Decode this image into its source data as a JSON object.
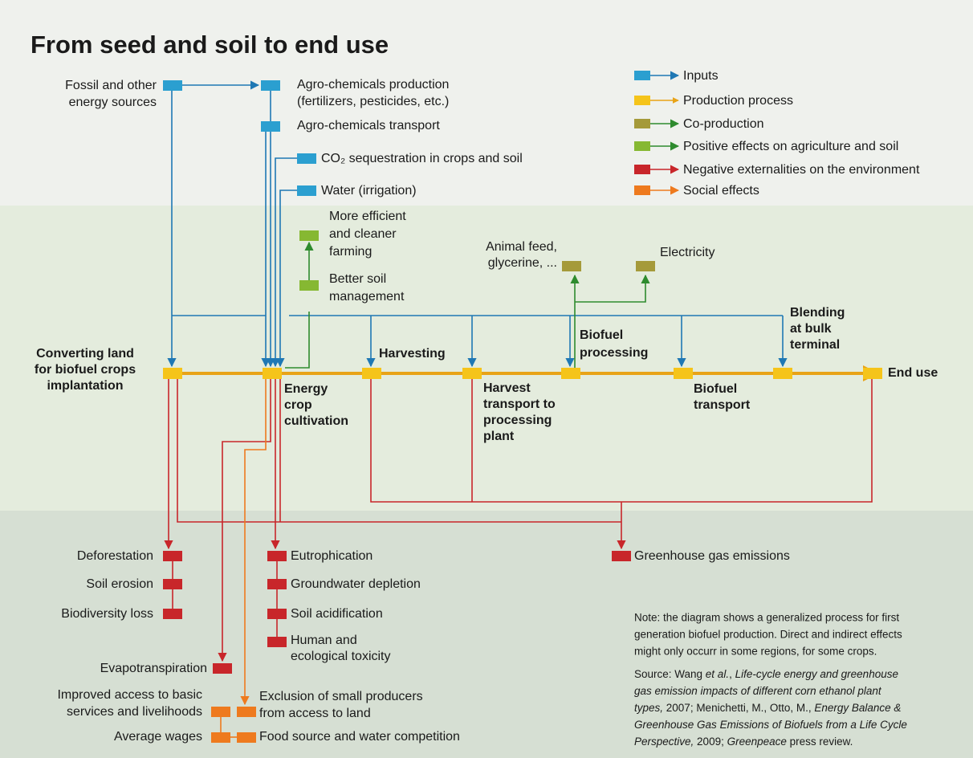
{
  "title": "From seed and soil to end use",
  "legend": [
    "Inputs",
    "Production process",
    "Co-production",
    "Positive effects on agriculture and soil",
    "Negative externalities on the environment",
    "Social effects"
  ],
  "inputs": {
    "fossil": [
      "Fossil and other",
      "energy sources"
    ],
    "agro_production": [
      "Agro-chemicals production",
      "(fertilizers, pesticides, etc.)"
    ],
    "agro_transport": [
      "Agro-chemicals transport"
    ],
    "co2": [
      "CO₂ sequestration in crops and soil"
    ],
    "water": [
      "Water (irrigation)"
    ]
  },
  "process": {
    "converting": [
      "Converting land",
      "for biofuel crops",
      "implantation"
    ],
    "cultivation": [
      "Energy",
      "crop",
      "cultivation"
    ],
    "harvesting": [
      "Harvesting"
    ],
    "harvest_transport": [
      "Harvest",
      "transport to",
      "processing",
      "plant"
    ],
    "processing": [
      "Biofuel",
      "processing"
    ],
    "biofuel_transport": [
      "Biofuel",
      "transport"
    ],
    "blending": [
      "Blending",
      "at bulk",
      "terminal"
    ],
    "end_use": [
      "End use"
    ]
  },
  "positive": {
    "efficient": [
      "More efficient",
      "and cleaner",
      "farming"
    ],
    "soil": [
      "Better soil",
      "management"
    ]
  },
  "coproduction": {
    "feed": [
      "Animal feed,",
      "glycerine, ..."
    ],
    "electricity": [
      "Electricity"
    ]
  },
  "negative": {
    "land": [
      "Deforestation",
      "Soil erosion",
      "Biodiversity loss"
    ],
    "cultivation": [
      "Eutrophication",
      "Groundwater depletion",
      "Soil acidification",
      "Human and",
      "ecological toxicity"
    ],
    "evapotranspiration": "Evapotranspiration",
    "ghg": "Greenhouse gas emissions"
  },
  "social": {
    "access": [
      "Improved access to basic",
      "services and livelihoods"
    ],
    "wages": "Average wages",
    "exclusion": [
      "Exclusion of small producers",
      "from access to land"
    ],
    "food": "Food source and water competition"
  },
  "note": [
    "Note: the diagram shows a generalized process for first",
    "generation biofuel production. Direct and indirect effects",
    "might only occurr in some regions, for some crops."
  ],
  "source": [
    [
      "Source: Wang ",
      "et al.",
      ", ",
      "Life-cycle energy and greenhouse"
    ],
    [
      "gas emission impacts of different corn ethanol plant"
    ],
    [
      "types,",
      " 2007; Menichetti, M., Otto, M., ",
      "Energy Balance &"
    ],
    [
      "Greenhouse Gas Emissions of Biofuels from a Life Cycle"
    ],
    [
      "Perspective,",
      " 2009; ",
      "Greenpeace",
      " press review."
    ]
  ]
}
